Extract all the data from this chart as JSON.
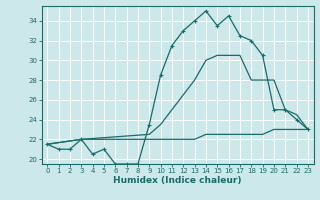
{
  "xlabel": "Humidex (Indice chaleur)",
  "background_color": "#cce8ea",
  "line_color": "#1a6b6b",
  "grid_color": "#b8d8da",
  "xlim": [
    -0.5,
    23.5
  ],
  "ylim": [
    19.5,
    35.5
  ],
  "xticks": [
    0,
    1,
    2,
    3,
    4,
    5,
    6,
    7,
    8,
    9,
    10,
    11,
    12,
    13,
    14,
    15,
    16,
    17,
    18,
    19,
    20,
    21,
    22,
    23
  ],
  "yticks": [
    20,
    22,
    24,
    26,
    28,
    30,
    32,
    34
  ],
  "curve1_x": [
    0,
    1,
    2,
    3,
    4,
    5,
    6,
    7,
    8,
    9,
    10,
    11,
    12,
    13,
    14,
    15,
    16,
    17,
    18,
    19,
    20,
    21,
    22,
    23
  ],
  "curve1_y": [
    21.5,
    21.0,
    21.0,
    22.0,
    20.5,
    21.0,
    19.5,
    19.5,
    19.5,
    23.5,
    28.5,
    31.5,
    33.0,
    34.0,
    35.0,
    33.5,
    34.5,
    32.5,
    32.0,
    30.5,
    25.0,
    25.0,
    24.0,
    23.0
  ],
  "curve2_x": [
    0,
    3,
    9,
    10,
    11,
    12,
    13,
    14,
    15,
    16,
    17,
    18,
    19,
    20,
    21,
    22,
    23
  ],
  "curve2_y": [
    21.5,
    22.0,
    22.5,
    23.5,
    25.0,
    26.5,
    28.0,
    30.0,
    30.5,
    30.5,
    30.5,
    28.0,
    28.0,
    28.0,
    25.0,
    24.5,
    23.0
  ],
  "curve3_x": [
    0,
    3,
    9,
    10,
    11,
    12,
    13,
    14,
    15,
    16,
    17,
    18,
    19,
    20,
    21,
    22,
    23
  ],
  "curve3_y": [
    21.5,
    22.0,
    22.0,
    22.0,
    22.0,
    22.0,
    22.0,
    22.5,
    22.5,
    22.5,
    22.5,
    22.5,
    22.5,
    23.0,
    23.0,
    23.0,
    23.0
  ]
}
